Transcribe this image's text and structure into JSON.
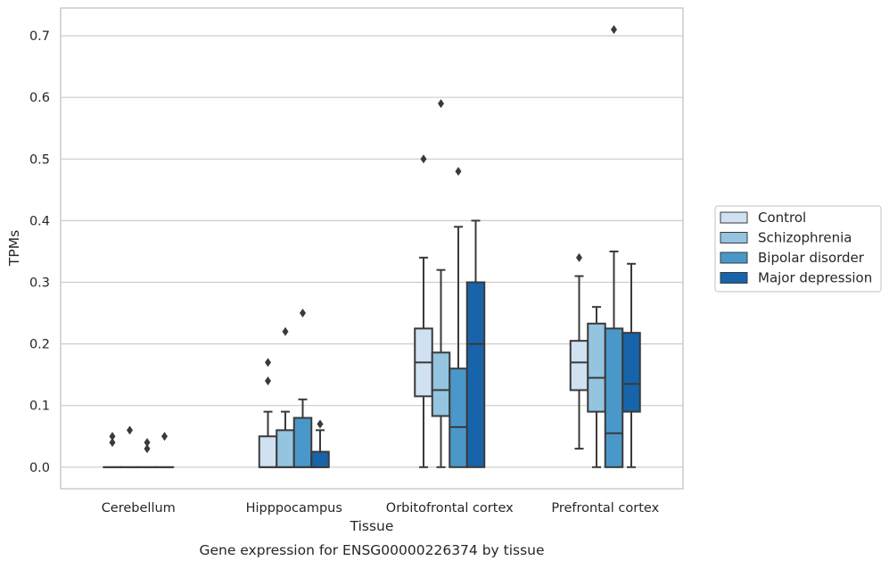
{
  "chart_data": {
    "type": "box",
    "title": "Gene expression for ENSG00000226374 by tissue",
    "xlabel": "Tissue",
    "ylabel": "TPMs",
    "ylim": [
      -0.035,
      0.745
    ],
    "yticks": [
      "0.0",
      "0.1",
      "0.2",
      "0.3",
      "0.4",
      "0.5",
      "0.6",
      "0.7"
    ],
    "grid": true,
    "legend_position": "right",
    "categories": [
      "Cerebellum",
      "Hipppocampus",
      "Orbitofrontal cortex",
      "Prefrontal cortex"
    ],
    "series": [
      {
        "name": "Control",
        "color": "#d0e1f2",
        "boxes": [
          {
            "whislo": 0.0,
            "q1": 0.0,
            "med": 0.0,
            "q3": 0.0,
            "whishi": 0.0,
            "fliers": [
              0.05,
              0.04
            ]
          },
          {
            "whislo": 0.0,
            "q1": 0.0,
            "med": 0.0,
            "q3": 0.05,
            "whishi": 0.09,
            "fliers": [
              0.17,
              0.14
            ]
          },
          {
            "whislo": 0.0,
            "q1": 0.115,
            "med": 0.17,
            "q3": 0.225,
            "whishi": 0.34,
            "fliers": [
              0.5
            ]
          },
          {
            "whislo": 0.03,
            "q1": 0.125,
            "med": 0.17,
            "q3": 0.205,
            "whishi": 0.31,
            "fliers": [
              0.34
            ]
          }
        ]
      },
      {
        "name": "Schizophrenia",
        "color": "#94c4df",
        "boxes": [
          {
            "whislo": 0.0,
            "q1": 0.0,
            "med": 0.0,
            "q3": 0.0,
            "whishi": 0.0,
            "fliers": [
              0.06
            ]
          },
          {
            "whislo": 0.0,
            "q1": 0.0,
            "med": 0.0,
            "q3": 0.06,
            "whishi": 0.09,
            "fliers": [
              0.22
            ]
          },
          {
            "whislo": 0.0,
            "q1": 0.083,
            "med": 0.125,
            "q3": 0.186,
            "whishi": 0.32,
            "fliers": [
              0.59
            ]
          },
          {
            "whislo": 0.0,
            "q1": 0.09,
            "med": 0.145,
            "q3": 0.233,
            "whishi": 0.26,
            "fliers": []
          }
        ]
      },
      {
        "name": "Bipolar disorder",
        "color": "#4a98c9",
        "boxes": [
          {
            "whislo": 0.0,
            "q1": 0.0,
            "med": 0.0,
            "q3": 0.0,
            "whishi": 0.0,
            "fliers": [
              0.04,
              0.03
            ]
          },
          {
            "whislo": 0.0,
            "q1": 0.0,
            "med": 0.0,
            "q3": 0.08,
            "whishi": 0.11,
            "fliers": [
              0.25
            ]
          },
          {
            "whislo": 0.0,
            "q1": 0.0,
            "med": 0.065,
            "q3": 0.16,
            "whishi": 0.39,
            "fliers": [
              0.48
            ]
          },
          {
            "whislo": 0.0,
            "q1": 0.0,
            "med": 0.055,
            "q3": 0.225,
            "whishi": 0.35,
            "fliers": [
              0.71
            ]
          }
        ]
      },
      {
        "name": "Major depression",
        "color": "#1764ab",
        "boxes": [
          {
            "whislo": 0.0,
            "q1": 0.0,
            "med": 0.0,
            "q3": 0.0,
            "whishi": 0.0,
            "fliers": [
              0.05
            ]
          },
          {
            "whislo": 0.0,
            "q1": 0.0,
            "med": 0.0,
            "q3": 0.025,
            "whishi": 0.06,
            "fliers": [
              0.07
            ]
          },
          {
            "whislo": 0.0,
            "q1": 0.0,
            "med": 0.2,
            "q3": 0.3,
            "whishi": 0.4,
            "fliers": []
          },
          {
            "whislo": 0.0,
            "q1": 0.09,
            "med": 0.135,
            "q3": 0.218,
            "whishi": 0.33,
            "fliers": []
          }
        ]
      }
    ]
  }
}
